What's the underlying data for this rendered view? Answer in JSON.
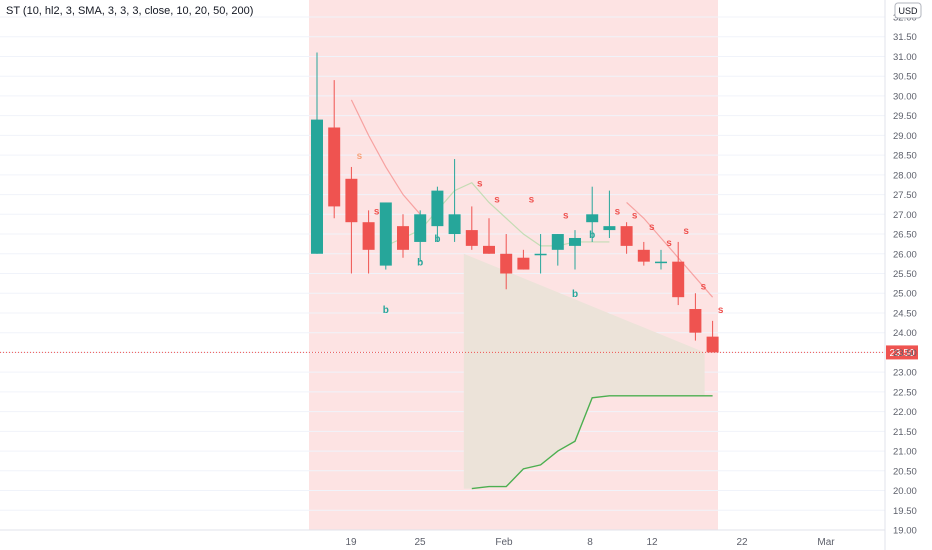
{
  "legend_text": "ST (10, hl2, 3, SMA, 3, 3, 3, close, 10, 20, 50, 200)",
  "currency": "USD",
  "last_price_label": "23.50",
  "colors": {
    "up": "#26a69a",
    "down": "#ef5350",
    "highlight_band": "#fde3e3",
    "fill_area": "#ece3d9",
    "supertrend": "#4caf50",
    "price_line": "#ef5350",
    "sell_signal": "#ef5350",
    "sell_signal_early": "#f7a27a",
    "buy_signal": "#26a69a"
  },
  "chart_data": {
    "type": "candlestick",
    "ylim": [
      19.0,
      32.0
    ],
    "y_ticks": [
      "19.00",
      "19.50",
      "20.00",
      "20.50",
      "21.00",
      "21.50",
      "22.00",
      "22.50",
      "23.00",
      "23.50",
      "24.00",
      "24.50",
      "25.00",
      "25.50",
      "26.00",
      "26.50",
      "27.00",
      "27.50",
      "28.00",
      "28.50",
      "29.00",
      "29.50",
      "30.00",
      "30.50",
      "31.00",
      "31.50",
      "32.00"
    ],
    "x_ticks": [
      "19",
      "25",
      "Feb",
      "8",
      "12",
      "22",
      "Mar"
    ],
    "last_price": 23.5,
    "candles": [
      {
        "o": 26.0,
        "h": 31.1,
        "l": 26.0,
        "c": 29.4
      },
      {
        "o": 29.2,
        "h": 30.4,
        "l": 26.9,
        "c": 27.2
      },
      {
        "o": 27.9,
        "h": 28.2,
        "l": 25.5,
        "c": 26.8
      },
      {
        "o": 26.8,
        "h": 27.1,
        "l": 25.5,
        "c": 26.1
      },
      {
        "o": 25.7,
        "h": 27.3,
        "l": 25.6,
        "c": 27.3
      },
      {
        "o": 26.7,
        "h": 27.0,
        "l": 25.9,
        "c": 26.1
      },
      {
        "o": 26.3,
        "h": 27.1,
        "l": 25.8,
        "c": 27.0
      },
      {
        "o": 26.7,
        "h": 27.7,
        "l": 26.3,
        "c": 27.6
      },
      {
        "o": 26.5,
        "h": 28.4,
        "l": 26.3,
        "c": 27.0
      },
      {
        "o": 26.6,
        "h": 27.2,
        "l": 26.1,
        "c": 26.2
      },
      {
        "o": 26.2,
        "h": 26.9,
        "l": 26.0,
        "c": 26.0
      },
      {
        "o": 26.0,
        "h": 26.5,
        "l": 25.1,
        "c": 25.5
      },
      {
        "o": 25.9,
        "h": 26.1,
        "l": 25.6,
        "c": 25.6
      },
      {
        "o": 26.0,
        "h": 26.5,
        "l": 25.5,
        "c": 26.0
      },
      {
        "o": 26.1,
        "h": 26.5,
        "l": 25.7,
        "c": 26.5
      },
      {
        "o": 26.2,
        "h": 26.6,
        "l": 25.6,
        "c": 26.4
      },
      {
        "o": 26.8,
        "h": 27.7,
        "l": 26.3,
        "c": 27.0
      },
      {
        "o": 26.6,
        "h": 27.6,
        "l": 26.4,
        "c": 26.7
      },
      {
        "o": 26.7,
        "h": 26.8,
        "l": 26.0,
        "c": 26.2
      },
      {
        "o": 26.1,
        "h": 26.3,
        "l": 25.7,
        "c": 25.8
      },
      {
        "o": 25.8,
        "h": 26.1,
        "l": 25.6,
        "c": 25.8
      },
      {
        "o": 25.8,
        "h": 26.3,
        "l": 24.7,
        "c": 24.9
      },
      {
        "o": 24.6,
        "h": 25.0,
        "l": 23.8,
        "c": 24.0
      },
      {
        "o": 23.9,
        "h": 24.3,
        "l": 23.5,
        "c": 23.5
      }
    ],
    "upper_line": [
      null,
      null,
      29.9,
      29.0,
      28.2,
      27.5,
      27.0,
      null,
      null,
      null,
      null,
      null,
      null,
      null,
      null,
      null,
      null,
      null,
      27.3,
      26.9,
      26.4,
      25.9,
      25.4,
      24.9
    ],
    "lower_line": [
      null,
      null,
      null,
      null,
      26.2,
      26.4,
      26.6,
      27.1,
      27.6,
      27.8,
      27.3,
      26.9,
      26.5,
      26.2,
      26.2,
      26.3,
      26.3,
      26.3,
      null,
      null,
      null,
      null,
      null,
      null
    ],
    "supertrend": [
      null,
      null,
      null,
      null,
      null,
      null,
      null,
      null,
      null,
      20.05,
      20.1,
      20.1,
      20.55,
      20.65,
      21.0,
      21.25,
      22.35,
      22.4,
      22.4,
      22.4,
      22.4,
      22.4,
      22.4,
      22.4
    ],
    "signals": [
      {
        "i": 2,
        "type": "sell",
        "y": 28.4,
        "label": "s"
      },
      {
        "i": 3,
        "type": "sell",
        "y": 27.0,
        "label": "s"
      },
      {
        "i": 4,
        "type": "buy",
        "y": 24.5,
        "label": "b"
      },
      {
        "i": 6,
        "type": "buy",
        "y": 25.7,
        "label": "b"
      },
      {
        "i": 7,
        "type": "buy",
        "y": 26.3,
        "label": "b"
      },
      {
        "i": 9,
        "type": "sell",
        "y": 27.7,
        "label": "s"
      },
      {
        "i": 10,
        "type": "sell",
        "y": 27.3,
        "label": "s"
      },
      {
        "i": 12,
        "type": "sell",
        "y": 27.3,
        "label": "s"
      },
      {
        "i": 14,
        "type": "sell",
        "y": 26.9,
        "label": "s"
      },
      {
        "i": 15,
        "type": "buy",
        "y": 24.9,
        "label": "b"
      },
      {
        "i": 16,
        "type": "buy",
        "y": 26.4,
        "label": "b"
      },
      {
        "i": 17,
        "type": "sell",
        "y": 27.0,
        "label": "s"
      },
      {
        "i": 18,
        "type": "sell",
        "y": 26.9,
        "label": "s"
      },
      {
        "i": 19,
        "type": "sell",
        "y": 26.6,
        "label": "s"
      },
      {
        "i": 20,
        "type": "sell",
        "y": 26.2,
        "label": "s"
      },
      {
        "i": 21,
        "type": "sell",
        "y": 26.5,
        "label": "s"
      },
      {
        "i": 22,
        "type": "sell",
        "y": 25.1,
        "label": "s"
      },
      {
        "i": 23,
        "type": "sell",
        "y": 24.5,
        "label": "s"
      }
    ]
  }
}
